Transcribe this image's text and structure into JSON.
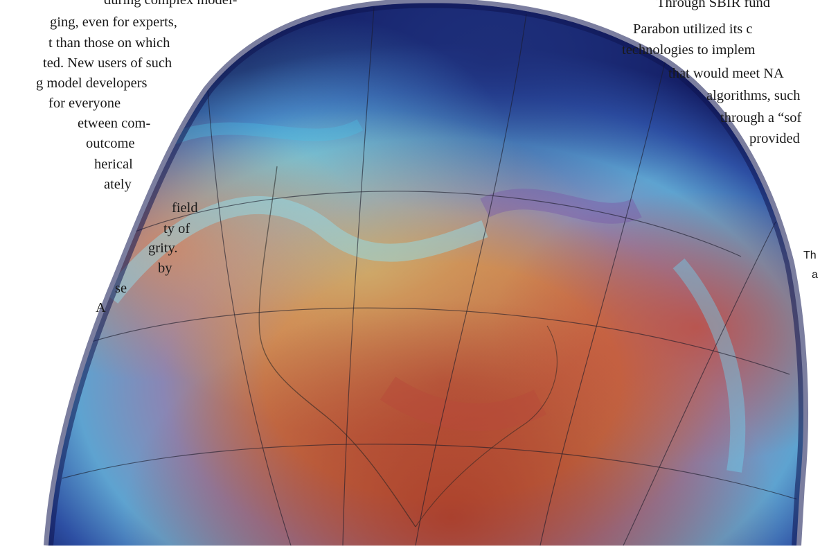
{
  "left_column": {
    "lines": [
      "during complex model-",
      "ging, even for experts,",
      "t than those on which",
      "ted. New users of such",
      "g model developers",
      "for everyone",
      "etween com-",
      "outcome",
      "herical",
      "ately",
      "field",
      "ty of",
      "grity.",
      "by",
      "se",
      "A"
    ]
  },
  "right_column": {
    "lines": [
      "Through SBIR fund",
      "Parabon utilized its c",
      "technologies to implem",
      "that would meet NA",
      "algorithms, such",
      "through a “sof",
      "provided"
    ]
  },
  "right_fragment": {
    "lines": [
      "Th",
      "a"
    ]
  },
  "figure": {
    "description_icon": "globe-weather-visualization-icon",
    "colors": {
      "deep_blue": "#1b2a7a",
      "cyan": "#37c7e8",
      "orange": "#d9803a",
      "red": "#b23a2a",
      "purple": "#7a4a8e"
    }
  }
}
